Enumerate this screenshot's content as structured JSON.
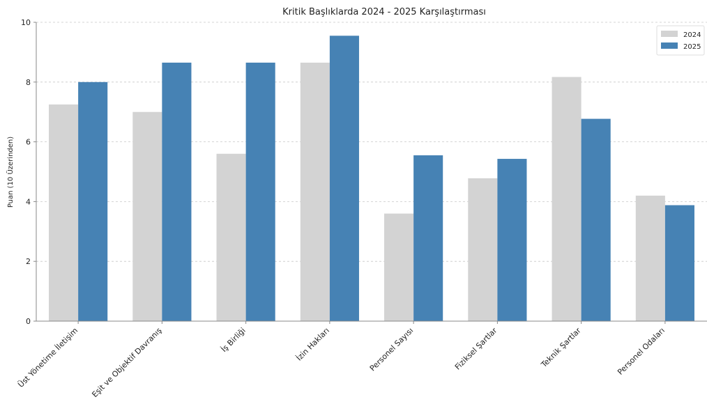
{
  "chart_data": {
    "type": "bar",
    "title": "Kritik Başlıklarda 2024 - 2025 Karşılaştırması",
    "xlabel": "",
    "ylabel": "Puan (10 Üzerinden)",
    "ylim": [
      0,
      10
    ],
    "yticks": [
      0,
      2,
      4,
      6,
      8,
      10
    ],
    "grid": true,
    "legend_position": "top-right",
    "categories": [
      "Üst Yönetime İletişim",
      "Eşit ve Objektif Davranış",
      "İş Birliği",
      "İzin Hakları",
      "Personel Sayısı",
      "Fiziksel Şartlar",
      "Teknik Şartlar",
      "Personel Odaları"
    ],
    "series": [
      {
        "name": "2024",
        "color": "#d3d3d3",
        "values": [
          7.25,
          7.0,
          5.6,
          8.65,
          3.6,
          4.78,
          8.17,
          4.2
        ]
      },
      {
        "name": "2025",
        "color": "#4682b4",
        "values": [
          8.0,
          8.65,
          8.65,
          9.55,
          5.55,
          5.43,
          6.77,
          3.88
        ]
      }
    ]
  }
}
